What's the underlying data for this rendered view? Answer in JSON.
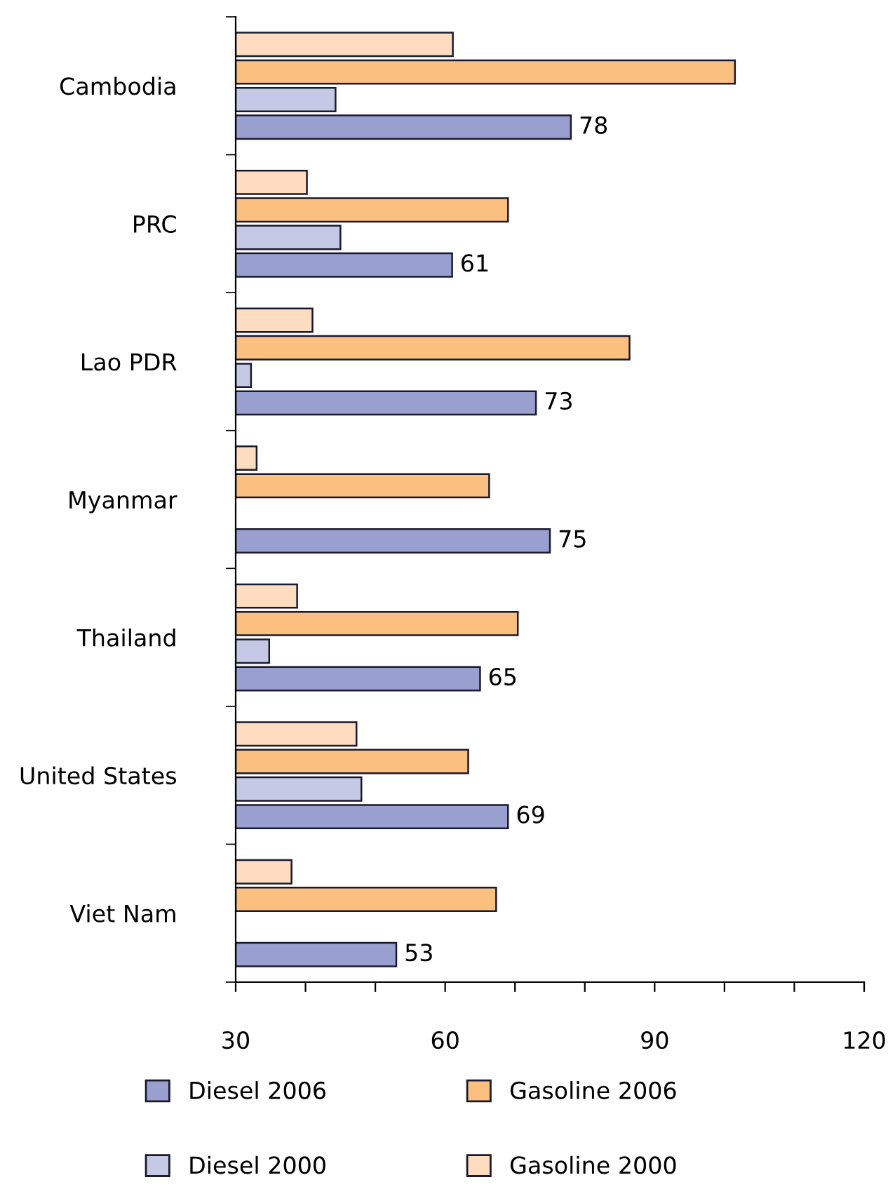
{
  "chart_data": {
    "type": "bar",
    "orientation": "horizontal",
    "categories": [
      "Cambodia",
      "PRC",
      "Lao PDR",
      "Myanmar",
      "Thailand",
      "United States",
      "Viet Nam"
    ],
    "series": [
      {
        "name": "Diesel 2006",
        "color": "#99a0d0",
        "values": [
          78,
          61,
          73,
          75,
          65,
          69,
          53
        ],
        "value_labels": [
          "78",
          "61",
          "73",
          "75",
          "65",
          "69",
          "53"
        ]
      },
      {
        "name": "Diesel 2000",
        "color": "#c5c9e6",
        "values": [
          44.3,
          45,
          32.2,
          null,
          34.8,
          48,
          null
        ]
      },
      {
        "name": "Gasoline 2006",
        "color": "#fbbf80",
        "values": [
          101.5,
          69,
          86.4,
          66.3,
          70.4,
          63.3,
          67.3
        ]
      },
      {
        "name": "Gasoline 2000",
        "color": "#fddcbf",
        "values": [
          61.1,
          40.2,
          41,
          33,
          38.8,
          47.3,
          38
        ]
      }
    ],
    "xlim": [
      30,
      120
    ],
    "xticks": [
      30,
      {
        "value": 40,
        "label": null
      },
      {
        "value": 50,
        "label": null
      },
      60,
      {
        "value": 70,
        "label": null
      },
      {
        "value": 80,
        "label": null
      },
      90,
      {
        "value": 100,
        "label": null
      },
      {
        "value": 110,
        "label": null
      },
      120
    ],
    "grid": false,
    "legend": "bottom"
  }
}
